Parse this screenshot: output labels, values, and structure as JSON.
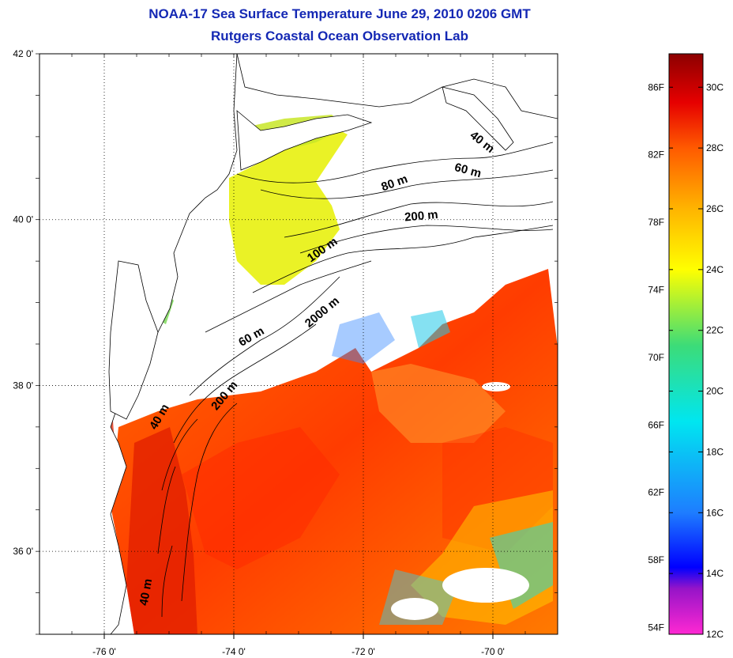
{
  "title": "NOAA-17 Sea Surface Temperature June 29, 2010 0206 GMT",
  "subtitle": "Rutgers Coastal Ocean Observation Lab",
  "map": {
    "lon_range": [
      -77.0,
      -69.0
    ],
    "lat_range": [
      35.0,
      42.0
    ],
    "lon_ticks": [
      {
        "value": -76,
        "label": "-76 0'"
      },
      {
        "value": -74,
        "label": "-74 0'"
      },
      {
        "value": -72,
        "label": "-72 0'"
      },
      {
        "value": -70,
        "label": "-70 0'"
      }
    ],
    "lat_ticks": [
      {
        "value": 42,
        "label": "42 0'"
      },
      {
        "value": 40,
        "label": "40 0'"
      },
      {
        "value": 38,
        "label": "38 0'"
      },
      {
        "value": 36,
        "label": "36 0'"
      }
    ],
    "grid": "dotted",
    "contour_labels": [
      {
        "text": "40 m",
        "lon": -70.2,
        "lat": 40.9,
        "rot": 38
      },
      {
        "text": "60 m",
        "lon": -70.4,
        "lat": 40.55,
        "rot": 15
      },
      {
        "text": "80 m",
        "lon": -71.5,
        "lat": 40.4,
        "rot": -20
      },
      {
        "text": "200 m",
        "lon": -71.1,
        "lat": 40.0,
        "rot": -5
      },
      {
        "text": "100 m",
        "lon": -72.6,
        "lat": 39.6,
        "rot": -35
      },
      {
        "text": "2000 m",
        "lon": -72.6,
        "lat": 38.85,
        "rot": -40
      },
      {
        "text": "60 m",
        "lon": -73.7,
        "lat": 38.55,
        "rot": -30
      },
      {
        "text": "200 m",
        "lon": -74.1,
        "lat": 37.85,
        "rot": -50
      },
      {
        "text": "40 m",
        "lon": -75.1,
        "lat": 37.6,
        "rot": -60
      },
      {
        "text": "40 m",
        "lon": -75.3,
        "lat": 35.5,
        "rot": -80
      }
    ]
  },
  "colorbar": {
    "min_c": 12,
    "max_c": 31.1,
    "stops": [
      {
        "c": 12.0,
        "color": "#ff28d2"
      },
      {
        "c": 13.5,
        "color": "#9614c8"
      },
      {
        "c": 14.2,
        "color": "#0000ff"
      },
      {
        "c": 16.0,
        "color": "#1e7dff"
      },
      {
        "c": 19.0,
        "color": "#00e6f0"
      },
      {
        "c": 21.5,
        "color": "#3cdc78"
      },
      {
        "c": 24.0,
        "color": "#ffff00"
      },
      {
        "c": 26.0,
        "color": "#ffb400"
      },
      {
        "c": 28.0,
        "color": "#ff5a00"
      },
      {
        "c": 29.5,
        "color": "#e60000"
      },
      {
        "c": 31.1,
        "color": "#8c0000"
      }
    ],
    "celsius_ticks": [
      {
        "c": 30,
        "label": "30C"
      },
      {
        "c": 28,
        "label": "28C"
      },
      {
        "c": 26,
        "label": "26C"
      },
      {
        "c": 24,
        "label": "24C"
      },
      {
        "c": 22,
        "label": "22C"
      },
      {
        "c": 20,
        "label": "20C"
      },
      {
        "c": 18,
        "label": "18C"
      },
      {
        "c": 16,
        "label": "16C"
      },
      {
        "c": 14,
        "label": "14C"
      },
      {
        "c": 12,
        "label": "12C"
      }
    ],
    "fahrenheit_ticks": [
      {
        "f": 86,
        "label": "86F"
      },
      {
        "f": 82,
        "label": "82F"
      },
      {
        "f": 78,
        "label": "78F"
      },
      {
        "f": 74,
        "label": "74F"
      },
      {
        "f": 70,
        "label": "70F"
      },
      {
        "f": 66,
        "label": "66F"
      },
      {
        "f": 62,
        "label": "62F"
      },
      {
        "f": 58,
        "label": "58F"
      },
      {
        "f": 54,
        "label": "54F"
      }
    ]
  },
  "colors": {
    "title": "#1428b4",
    "land": "#ffffff",
    "coast": "#000000"
  }
}
